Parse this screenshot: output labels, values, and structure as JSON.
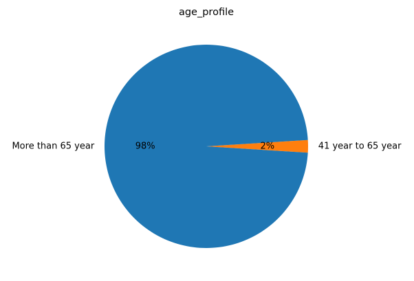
{
  "chart_data": {
    "type": "pie",
    "title": "age_profile",
    "slices": [
      {
        "label": "More than 65 year",
        "value": 98,
        "percent_label": "98%",
        "color": "#1f77b4"
      },
      {
        "label": "41 year to 65 year",
        "value": 2,
        "percent_label": "2%",
        "color": "#ff7f0e"
      }
    ],
    "legend": "none"
  }
}
